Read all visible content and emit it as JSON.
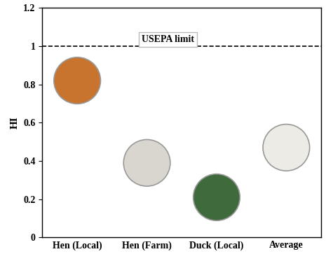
{
  "chart_data": {
    "type": "scatter",
    "y_label": "HI",
    "categories": [
      "Hen (Local)",
      "Hen (Farm)",
      "Duck (Local)",
      "Average"
    ],
    "values": [
      0.82,
      0.39,
      0.21,
      0.47
    ],
    "colors": [
      "#c8742f",
      "#d9d6cf",
      "#3f6b3c",
      "#ecebe6"
    ],
    "marker": "o",
    "ylim": [
      0,
      1.2
    ],
    "yticks": [
      0,
      0.2,
      0.4,
      0.6,
      0.8,
      1,
      1.2
    ],
    "grid": false,
    "reference_lines": [
      {
        "value": 1,
        "label": "USEPA limit",
        "line_style": "dashed"
      }
    ]
  }
}
